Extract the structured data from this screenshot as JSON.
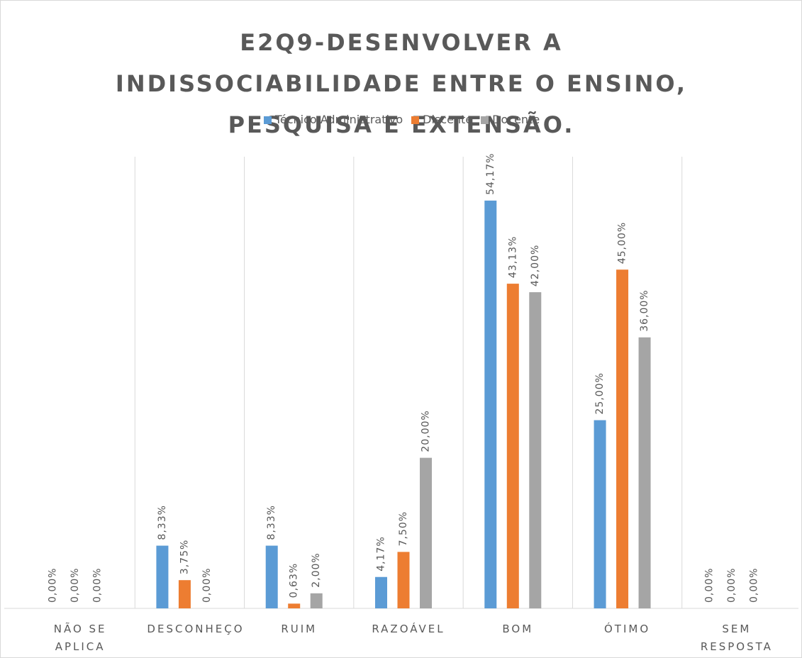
{
  "chart_data": {
    "type": "bar",
    "title": "E2Q9-DESENVOLVER A INDISSOCIABILIDADE ENTRE O ENSINO, PESQUISA E EXTENSÃO.",
    "categories": [
      "NÃO SE APLICA",
      "DESCONHEÇO",
      "RUIM",
      "RAZOÁVEL",
      "BOM",
      "ÓTIMO",
      "SEM RESPOSTA"
    ],
    "series": [
      {
        "name": "Técnico Administrativo",
        "color": "#5b9bd5",
        "values": [
          0,
          8.33,
          8.33,
          4.17,
          54.17,
          25,
          0
        ],
        "value_labels": [
          "0,00%",
          "8,33%",
          "8,33%",
          "4,17%",
          "54,17%",
          "25,00%",
          "0,00%"
        ]
      },
      {
        "name": "Discente",
        "color": "#ed7d31",
        "values": [
          0,
          3.75,
          0.63,
          7.5,
          43.13,
          45,
          0
        ],
        "value_labels": [
          "0,00%",
          "3,75%",
          "0,63%",
          "7,50%",
          "43,13%",
          "45,00%",
          "0,00%"
        ]
      },
      {
        "name": "Docente",
        "color": "#a5a5a5",
        "values": [
          0,
          0,
          2,
          20,
          42,
          36,
          0
        ],
        "value_labels": [
          "0,00%",
          "0,00%",
          "2,00%",
          "20,00%",
          "42,00%",
          "36,00%",
          "0,00%"
        ]
      }
    ],
    "ylim": [
      0,
      60
    ],
    "legend": "top"
  }
}
